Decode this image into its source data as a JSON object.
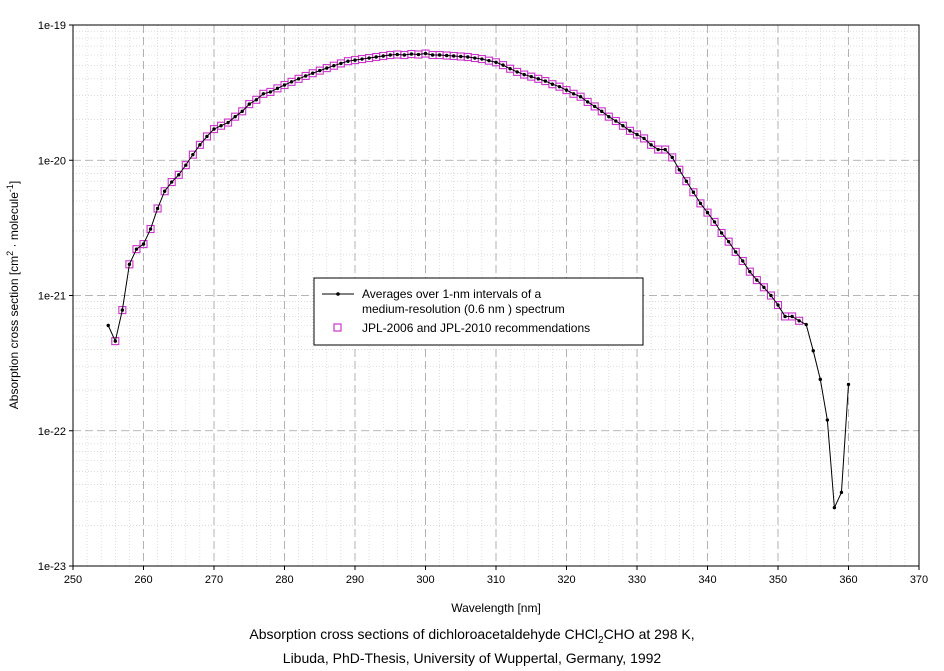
{
  "chart_data": {
    "type": "scatter",
    "xlabel": "Wavelength [nm]",
    "ylabel_parts": [
      "Absorption cross section [cm",
      "2",
      " · molecule",
      "-1",
      "]"
    ],
    "xlim": [
      250,
      370
    ],
    "ylim": [
      1e-23,
      1e-19
    ],
    "y_scale": "log",
    "x_ticks": [
      250,
      260,
      270,
      280,
      290,
      300,
      310,
      320,
      330,
      340,
      350,
      360,
      370
    ],
    "y_ticks": [
      {
        "value": 1e-23,
        "label": "1e-23"
      },
      {
        "value": 1e-22,
        "label": "1e-22"
      },
      {
        "value": 1e-21,
        "label": "1e-21"
      },
      {
        "value": 1e-20,
        "label": "1e-20"
      },
      {
        "value": 1e-19,
        "label": "1e-19"
      }
    ],
    "grid": true,
    "legend_position": "center",
    "series": [
      {
        "name_lines": [
          "Averages over 1-nm intervals of a",
          "medium-resolution (0.6 nm ) spectrum"
        ],
        "style": "line-with-dots",
        "color": "#000000",
        "x": [
          255,
          256,
          257,
          258,
          259,
          260,
          261,
          262,
          263,
          264,
          265,
          266,
          267,
          268,
          269,
          270,
          271,
          272,
          273,
          274,
          275,
          276,
          277,
          278,
          279,
          280,
          281,
          282,
          283,
          284,
          285,
          286,
          287,
          288,
          289,
          290,
          291,
          292,
          293,
          294,
          295,
          296,
          297,
          298,
          299,
          300,
          301,
          302,
          303,
          304,
          305,
          306,
          307,
          308,
          309,
          310,
          311,
          312,
          313,
          314,
          315,
          316,
          317,
          318,
          319,
          320,
          321,
          322,
          323,
          324,
          325,
          326,
          327,
          328,
          329,
          330,
          331,
          332,
          333,
          334,
          335,
          336,
          337,
          338,
          339,
          340,
          341,
          342,
          343,
          344,
          345,
          346,
          347,
          348,
          349,
          350,
          351,
          352,
          353,
          354,
          355,
          356,
          357,
          358,
          359,
          360
        ],
        "y": [
          6e-22,
          4.6e-22,
          7.8e-22,
          1.7e-21,
          2.2e-21,
          2.4e-21,
          3.1e-21,
          4.4e-21,
          5.9e-21,
          6.9e-21,
          7.8e-21,
          9.2e-21,
          1.1e-20,
          1.3e-20,
          1.5e-20,
          1.7e-20,
          1.8e-20,
          1.9e-20,
          2.1e-20,
          2.3e-20,
          2.6e-20,
          2.8e-20,
          3.1e-20,
          3.2e-20,
          3.4e-20,
          3.6e-20,
          3.8e-20,
          4e-20,
          4.2e-20,
          4.4e-20,
          4.6e-20,
          4.8e-20,
          5e-20,
          5.2e-20,
          5.4e-20,
          5.5e-20,
          5.6e-20,
          5.7e-20,
          5.8e-20,
          5.9e-20,
          6e-20,
          6.05e-20,
          6e-20,
          6.1e-20,
          6.05e-20,
          6.15e-20,
          6e-20,
          6e-20,
          5.95e-20,
          5.9e-20,
          5.85e-20,
          5.8e-20,
          5.7e-20,
          5.6e-20,
          5.45e-20,
          5.3e-20,
          5.05e-20,
          4.75e-20,
          4.5e-20,
          4.3e-20,
          4.15e-20,
          4e-20,
          3.85e-20,
          3.65e-20,
          3.5e-20,
          3.3e-20,
          3.1e-20,
          2.95e-20,
          2.7e-20,
          2.5e-20,
          2.3e-20,
          2.1e-20,
          1.95e-20,
          1.8e-20,
          1.65e-20,
          1.55e-20,
          1.45e-20,
          1.3e-20,
          1.2e-20,
          1.2e-20,
          1.05e-20,
          8.5e-21,
          7e-21,
          5.8e-21,
          4.8e-21,
          4.1e-21,
          3.5e-21,
          2.9e-21,
          2.5e-21,
          2.1e-21,
          1.8e-21,
          1.5e-21,
          1.3e-21,
          1.15e-21,
          1e-21,
          8.5e-22,
          7e-22,
          7e-22,
          6.5e-22,
          6.1e-22,
          3.9e-22,
          2.4e-22,
          1.2e-22,
          2.7e-23,
          3.5e-23,
          2.2e-22
        ]
      },
      {
        "name": "JPL-2006 and JPL-2010 recommendations",
        "style": "open-square",
        "color": "#cc33cc",
        "x": [
          256,
          257,
          258,
          259,
          260,
          261,
          262,
          263,
          264,
          265,
          266,
          267,
          268,
          269,
          270,
          271,
          272,
          273,
          274,
          275,
          276,
          277,
          278,
          279,
          280,
          281,
          282,
          283,
          284,
          285,
          286,
          287,
          288,
          289,
          290,
          291,
          292,
          293,
          294,
          295,
          296,
          297,
          298,
          299,
          300,
          301,
          302,
          303,
          304,
          305,
          306,
          307,
          308,
          309,
          310,
          311,
          312,
          313,
          314,
          315,
          316,
          317,
          318,
          319,
          320,
          321,
          322,
          323,
          324,
          325,
          326,
          327,
          328,
          329,
          330,
          331,
          332,
          333,
          334,
          335,
          336,
          337,
          338,
          339,
          340,
          341,
          342,
          343,
          344,
          345,
          346,
          347,
          348,
          349,
          350,
          351,
          352,
          353
        ],
        "y": [
          4.6e-22,
          7.8e-22,
          1.7e-21,
          2.2e-21,
          2.4e-21,
          3.1e-21,
          4.4e-21,
          5.9e-21,
          6.9e-21,
          7.8e-21,
          9.2e-21,
          1.1e-20,
          1.3e-20,
          1.5e-20,
          1.7e-20,
          1.8e-20,
          1.9e-20,
          2.1e-20,
          2.3e-20,
          2.6e-20,
          2.8e-20,
          3.1e-20,
          3.2e-20,
          3.4e-20,
          3.6e-20,
          3.8e-20,
          4e-20,
          4.2e-20,
          4.4e-20,
          4.6e-20,
          4.8e-20,
          5e-20,
          5.2e-20,
          5.4e-20,
          5.5e-20,
          5.6e-20,
          5.7e-20,
          5.8e-20,
          5.9e-20,
          6e-20,
          6.05e-20,
          6e-20,
          6.1e-20,
          6.05e-20,
          6.15e-20,
          6e-20,
          6e-20,
          5.95e-20,
          5.9e-20,
          5.85e-20,
          5.8e-20,
          5.7e-20,
          5.6e-20,
          5.45e-20,
          5.3e-20,
          5.05e-20,
          4.75e-20,
          4.5e-20,
          4.3e-20,
          4.15e-20,
          4e-20,
          3.85e-20,
          3.65e-20,
          3.5e-20,
          3.3e-20,
          3.1e-20,
          2.95e-20,
          2.7e-20,
          2.5e-20,
          2.3e-20,
          2.1e-20,
          1.95e-20,
          1.8e-20,
          1.65e-20,
          1.55e-20,
          1.45e-20,
          1.3e-20,
          1.2e-20,
          1.2e-20,
          1.05e-20,
          8.5e-21,
          7e-21,
          5.8e-21,
          4.8e-21,
          4.1e-21,
          3.5e-21,
          2.9e-21,
          2.5e-21,
          2.1e-21,
          1.8e-21,
          1.5e-21,
          1.3e-21,
          1.15e-21,
          1e-21,
          8.5e-22,
          7e-22,
          7e-22,
          6.5e-22
        ]
      }
    ]
  },
  "caption": {
    "line1_pre": "Absorption cross sections of dichloroacetaldehyde CHCl",
    "line1_sub": "2",
    "line1_post": "CHO at 298 K,",
    "line2": "Libuda, PhD-Thesis, University of Wuppertal, Germany, 1992"
  }
}
